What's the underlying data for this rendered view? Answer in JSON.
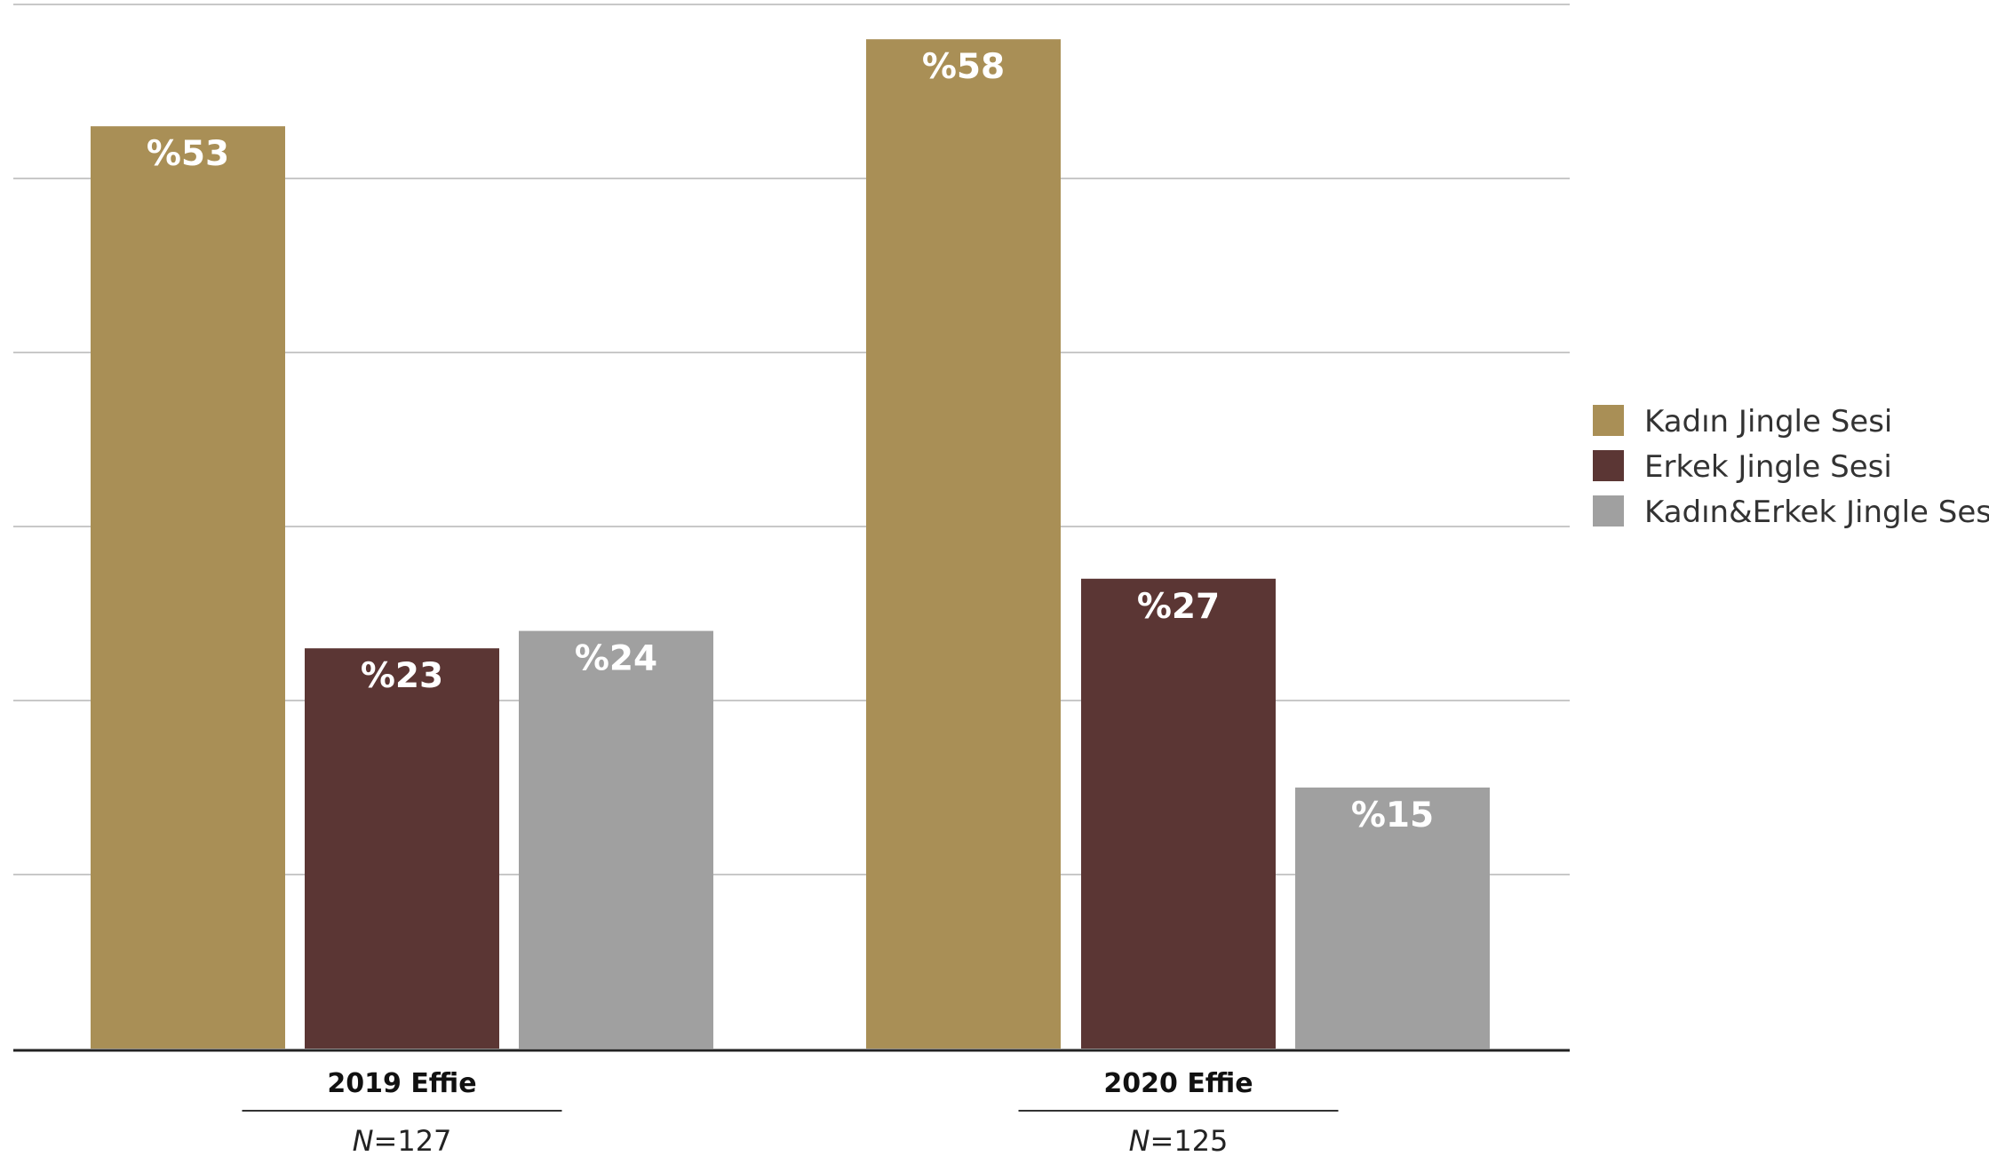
{
  "chart_data": {
    "type": "bar",
    "title": "",
    "xlabel": "",
    "ylabel": "",
    "ylim": [
      0,
      60
    ],
    "grid": true,
    "legend_position": "right",
    "categories": [
      "2019 Effie",
      "2020 Effie"
    ],
    "sample_sizes": [
      {
        "prefix": "N",
        "value": "=127"
      },
      {
        "prefix": "N",
        "value": "=125"
      }
    ],
    "series": [
      {
        "name": "Kadın Jingle Sesi",
        "color": "#a98f56",
        "values": [
          53,
          58
        ],
        "labels": [
          "%53",
          "%58"
        ]
      },
      {
        "name": "Erkek Jingle Sesi",
        "color": "#5b3634",
        "values": [
          23,
          27
        ],
        "labels": [
          "%23",
          "%27"
        ]
      },
      {
        "name": "Kadın&Erkek Jingle Sesi",
        "color": "#a0a0a0",
        "values": [
          24,
          15
        ],
        "labels": [
          "%24",
          "%15"
        ]
      }
    ]
  }
}
